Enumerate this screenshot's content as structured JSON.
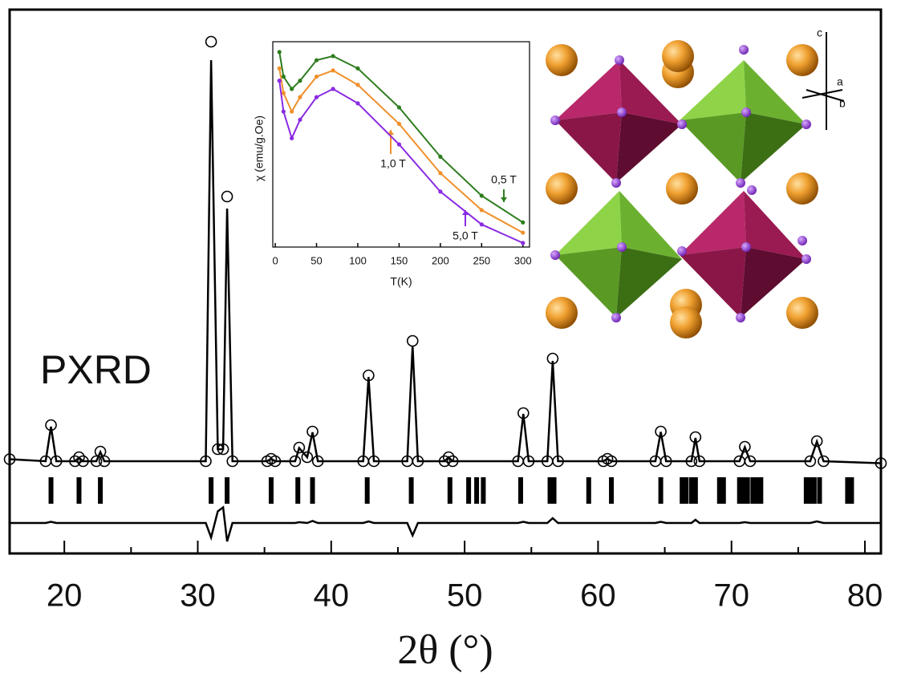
{
  "chart_data": [
    {
      "type": "line",
      "annotation": "PXRD",
      "xlabel": "2θ (°)",
      "xlim": [
        15.9,
        81.2
      ],
      "xticks": [
        20,
        30,
        40,
        50,
        60,
        70,
        80
      ],
      "minor_xticks": [
        25,
        35,
        45,
        55,
        65,
        75
      ],
      "ylim": [
        -23,
        112.6
      ],
      "x": [
        15.9,
        18.6,
        19.0,
        19.4,
        20.8,
        21.1,
        21.4,
        22.4,
        22.7,
        23.0,
        30.6,
        31.0,
        31.5,
        31.9,
        32.2,
        32.6,
        35.2,
        35.5,
        35.8,
        37.3,
        37.6,
        38.2,
        38.6,
        39.0,
        42.4,
        42.8,
        43.2,
        45.7,
        46.1,
        46.5,
        48.5,
        48.8,
        49.1,
        54.0,
        54.4,
        54.8,
        56.2,
        56.6,
        57.0,
        60.4,
        60.7,
        61.0,
        64.3,
        64.7,
        65.1,
        67.0,
        67.3,
        67.6,
        70.6,
        71.0,
        71.4,
        75.9,
        76.4,
        76.9,
        81.2
      ],
      "series": [
        {
          "color": "#000000",
          "marker": "circle",
          "values": [
            0.5,
            0,
            9,
            0,
            0,
            1,
            0,
            0,
            2.4,
            0,
            0,
            104.6,
            3,
            3,
            66,
            0,
            0,
            0.6,
            0,
            0,
            3.4,
            1,
            7.4,
            0,
            0,
            21.4,
            0,
            0,
            30,
            0,
            0,
            1,
            0,
            0,
            12,
            0,
            0,
            25.6,
            0,
            0,
            0.6,
            0,
            0,
            7.4,
            0,
            0,
            6,
            0,
            0,
            3.6,
            0,
            0,
            5,
            0,
            -0.5
          ]
        },
        {
          "color": "#000000",
          "marker": "none",
          "values": [
            0.5,
            0,
            8.6,
            0,
            0,
            0.9,
            0,
            0,
            2.3,
            0,
            0,
            100,
            3,
            3,
            63,
            0,
            0,
            0.6,
            0,
            0,
            3.3,
            1,
            7.2,
            0,
            0,
            21,
            0,
            0,
            28.8,
            0,
            0,
            1,
            0,
            0,
            11.8,
            0,
            0,
            25,
            0,
            0,
            0.6,
            0,
            0,
            7.3,
            0,
            0,
            5.8,
            0,
            0,
            3.5,
            0,
            0,
            4.9,
            0,
            -0.5
          ]
        },
        {
          "color": "#000000",
          "marker": "none",
          "values": [
            -15.4,
            -15.4,
            -15.1,
            -15.4,
            -15.4,
            -15.4,
            -15.4,
            -15.4,
            -15.4,
            -15.4,
            -15.4,
            -19,
            -12.5,
            -11.5,
            -20,
            -15.4,
            -15.4,
            -15.4,
            -15.4,
            -15.4,
            -15.2,
            -15.4,
            -14.9,
            -15.4,
            -15.4,
            -15.0,
            -15.4,
            -15.4,
            -18.5,
            -15.4,
            -15.4,
            -15.4,
            -15.4,
            -15.4,
            -15.1,
            -15.4,
            -15.4,
            -14.2,
            -15.4,
            -15.4,
            -15.4,
            -15.4,
            -15.4,
            -15.1,
            -15.4,
            -15.4,
            -14.6,
            -15.4,
            -15.4,
            -15.2,
            -15.4,
            -15.4,
            -15.0,
            -15.4,
            -15.4
          ]
        }
      ],
      "reflections": [
        19.0,
        21.1,
        22.7,
        31.0,
        32.2,
        35.5,
        37.5,
        38.6,
        42.7,
        46.0,
        48.9,
        50.3,
        50.9,
        51.4,
        54.2,
        56.4,
        56.7,
        59.3,
        61.0,
        64.7,
        66.3,
        66.6,
        67.0,
        67.3,
        69.1,
        69.4,
        70.6,
        70.9,
        71.2,
        71.6,
        71.9,
        72.2,
        75.6,
        75.9,
        76.2,
        76.6,
        78.7,
        79.0
      ]
    },
    {
      "type": "line",
      "xlabel": "T(K)",
      "ylabel": "χ (emu/g.Oe)",
      "xlim": [
        -3,
        308
      ],
      "xticks": [
        0,
        50,
        100,
        150,
        200,
        250,
        300
      ],
      "ylim": [
        0,
        1
      ],
      "x": [
        5,
        10,
        20,
        30,
        50,
        70,
        100,
        150,
        200,
        250,
        300
      ],
      "series": [
        {
          "color": "#2e7d1e",
          "marker": "dot",
          "annotation": "0,5 T",
          "values": [
            0.95,
            0.83,
            0.77,
            0.81,
            0.91,
            0.93,
            0.87,
            0.68,
            0.44,
            0.25,
            0.12
          ]
        },
        {
          "color": "#f0902a",
          "marker": "dot",
          "annotation": "1,0 T",
          "values": [
            0.87,
            0.75,
            0.66,
            0.73,
            0.83,
            0.86,
            0.79,
            0.6,
            0.36,
            0.18,
            0.07
          ]
        },
        {
          "color": "#8a2be2",
          "marker": "dot",
          "annotation": "5,0 T",
          "values": [
            0.81,
            0.66,
            0.53,
            0.62,
            0.73,
            0.77,
            0.7,
            0.5,
            0.27,
            0.11,
            0.02
          ]
        }
      ]
    }
  ],
  "structure": {
    "axis_labels": [
      "c",
      "a",
      "b"
    ]
  }
}
